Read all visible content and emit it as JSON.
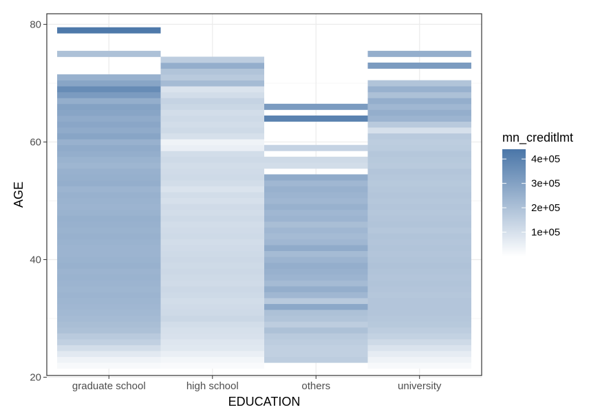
{
  "chart_data": {
    "type": "heatmap",
    "xlabel": "EDUCATION",
    "ylabel": "AGE",
    "categories": [
      "graduate school",
      "high school",
      "others",
      "university"
    ],
    "y_ticks": [
      20,
      40,
      60,
      80
    ],
    "ylim": [
      20.3,
      81.8
    ],
    "grid": true,
    "fill_variable": "mn_creditlmt",
    "color_low": "#ffffff",
    "color_high": "#4a76a8",
    "legend": {
      "title": "mn_creditlmt",
      "position": "right",
      "ticks": [
        100000,
        200000,
        300000,
        400000
      ],
      "tick_labels": [
        "1e+05",
        "2e+05",
        "3e+05",
        "4e+05"
      ],
      "range": [
        0,
        440000
      ]
    },
    "cells": {
      "graduate school": [
        [
          22,
          20000
        ],
        [
          23,
          40000
        ],
        [
          24,
          70000
        ],
        [
          25,
          110000
        ],
        [
          26,
          150000
        ],
        [
          27,
          170000
        ],
        [
          28,
          200000
        ],
        [
          29,
          210000
        ],
        [
          30,
          220000
        ],
        [
          31,
          225000
        ],
        [
          32,
          230000
        ],
        [
          33,
          235000
        ],
        [
          34,
          240000
        ],
        [
          35,
          235000
        ],
        [
          36,
          240000
        ],
        [
          37,
          245000
        ],
        [
          38,
          240000
        ],
        [
          39,
          250000
        ],
        [
          40,
          245000
        ],
        [
          41,
          240000
        ],
        [
          42,
          240000
        ],
        [
          43,
          245000
        ],
        [
          44,
          250000
        ],
        [
          45,
          245000
        ],
        [
          46,
          250000
        ],
        [
          47,
          255000
        ],
        [
          48,
          245000
        ],
        [
          49,
          240000
        ],
        [
          50,
          245000
        ],
        [
          51,
          250000
        ],
        [
          52,
          240000
        ],
        [
          53,
          260000
        ],
        [
          54,
          255000
        ],
        [
          55,
          250000
        ],
        [
          56,
          235000
        ],
        [
          57,
          245000
        ],
        [
          58,
          260000
        ],
        [
          59,
          270000
        ],
        [
          60,
          250000
        ],
        [
          61,
          290000
        ],
        [
          62,
          270000
        ],
        [
          63,
          285000
        ],
        [
          64,
          270000
        ],
        [
          65,
          290000
        ],
        [
          66,
          300000
        ],
        [
          67,
          260000
        ],
        [
          68,
          320000
        ],
        [
          69,
          370000
        ],
        [
          70,
          290000
        ],
        [
          71,
          250000
        ],
        [
          75,
          200000
        ],
        [
          79,
          430000
        ]
      ],
      "high school": [
        [
          22,
          15000
        ],
        [
          23,
          30000
        ],
        [
          24,
          50000
        ],
        [
          25,
          75000
        ],
        [
          26,
          80000
        ],
        [
          27,
          95000
        ],
        [
          28,
          100000
        ],
        [
          29,
          110000
        ],
        [
          30,
          130000
        ],
        [
          31,
          120000
        ],
        [
          32,
          115000
        ],
        [
          33,
          110000
        ],
        [
          34,
          120000
        ],
        [
          35,
          125000
        ],
        [
          36,
          115000
        ],
        [
          37,
          120000
        ],
        [
          38,
          125000
        ],
        [
          39,
          120000
        ],
        [
          40,
          125000
        ],
        [
          41,
          120000
        ],
        [
          42,
          115000
        ],
        [
          43,
          110000
        ],
        [
          44,
          120000
        ],
        [
          45,
          115000
        ],
        [
          46,
          110000
        ],
        [
          47,
          120000
        ],
        [
          48,
          110000
        ],
        [
          49,
          115000
        ],
        [
          50,
          100000
        ],
        [
          51,
          110000
        ],
        [
          52,
          90000
        ],
        [
          53,
          110000
        ],
        [
          54,
          120000
        ],
        [
          55,
          115000
        ],
        [
          56,
          110000
        ],
        [
          57,
          120000
        ],
        [
          58,
          110000
        ],
        [
          59,
          50000
        ],
        [
          60,
          40000
        ],
        [
          61,
          100000
        ],
        [
          62,
          120000
        ],
        [
          63,
          110000
        ],
        [
          64,
          120000
        ],
        [
          65,
          110000
        ],
        [
          66,
          130000
        ],
        [
          67,
          140000
        ],
        [
          68,
          110000
        ],
        [
          69,
          90000
        ],
        [
          70,
          220000
        ],
        [
          71,
          170000
        ],
        [
          72,
          190000
        ],
        [
          73,
          260000
        ],
        [
          74,
          160000
        ]
      ],
      "others": [
        [
          23,
          160000
        ],
        [
          24,
          150000
        ],
        [
          25,
          150000
        ],
        [
          26,
          160000
        ],
        [
          27,
          170000
        ],
        [
          28,
          200000
        ],
        [
          29,
          160000
        ],
        [
          30,
          190000
        ],
        [
          31,
          200000
        ],
        [
          32,
          280000
        ],
        [
          33,
          170000
        ],
        [
          34,
          230000
        ],
        [
          35,
          260000
        ],
        [
          36,
          220000
        ],
        [
          37,
          240000
        ],
        [
          38,
          250000
        ],
        [
          39,
          260000
        ],
        [
          40,
          240000
        ],
        [
          41,
          220000
        ],
        [
          42,
          270000
        ],
        [
          43,
          230000
        ],
        [
          44,
          220000
        ],
        [
          45,
          230000
        ],
        [
          46,
          210000
        ],
        [
          47,
          240000
        ],
        [
          48,
          230000
        ],
        [
          49,
          250000
        ],
        [
          50,
          230000
        ],
        [
          51,
          240000
        ],
        [
          52,
          250000
        ],
        [
          53,
          230000
        ],
        [
          54,
          270000
        ],
        [
          56,
          110000
        ],
        [
          57,
          120000
        ],
        [
          59,
          140000
        ],
        [
          64,
          400000
        ],
        [
          66,
          320000
        ]
      ],
      "university": [
        [
          22,
          20000
        ],
        [
          23,
          40000
        ],
        [
          24,
          60000
        ],
        [
          25,
          90000
        ],
        [
          26,
          120000
        ],
        [
          27,
          145000
        ],
        [
          28,
          160000
        ],
        [
          29,
          175000
        ],
        [
          30,
          180000
        ],
        [
          31,
          185000
        ],
        [
          32,
          185000
        ],
        [
          33,
          185000
        ],
        [
          34,
          180000
        ],
        [
          35,
          185000
        ],
        [
          36,
          190000
        ],
        [
          37,
          185000
        ],
        [
          38,
          190000
        ],
        [
          39,
          195000
        ],
        [
          40,
          190000
        ],
        [
          41,
          185000
        ],
        [
          42,
          190000
        ],
        [
          43,
          185000
        ],
        [
          44,
          190000
        ],
        [
          45,
          180000
        ],
        [
          46,
          190000
        ],
        [
          47,
          185000
        ],
        [
          48,
          180000
        ],
        [
          49,
          185000
        ],
        [
          50,
          180000
        ],
        [
          51,
          185000
        ],
        [
          52,
          180000
        ],
        [
          53,
          175000
        ],
        [
          54,
          180000
        ],
        [
          55,
          185000
        ],
        [
          56,
          170000
        ],
        [
          57,
          175000
        ],
        [
          58,
          180000
        ],
        [
          59,
          165000
        ],
        [
          60,
          160000
        ],
        [
          61,
          170000
        ],
        [
          62,
          100000
        ],
        [
          63,
          170000
        ],
        [
          64,
          240000
        ],
        [
          65,
          260000
        ],
        [
          66,
          230000
        ],
        [
          67,
          260000
        ],
        [
          68,
          200000
        ],
        [
          69,
          250000
        ],
        [
          70,
          190000
        ],
        [
          73,
          320000
        ],
        [
          75,
          260000
        ]
      ]
    }
  }
}
